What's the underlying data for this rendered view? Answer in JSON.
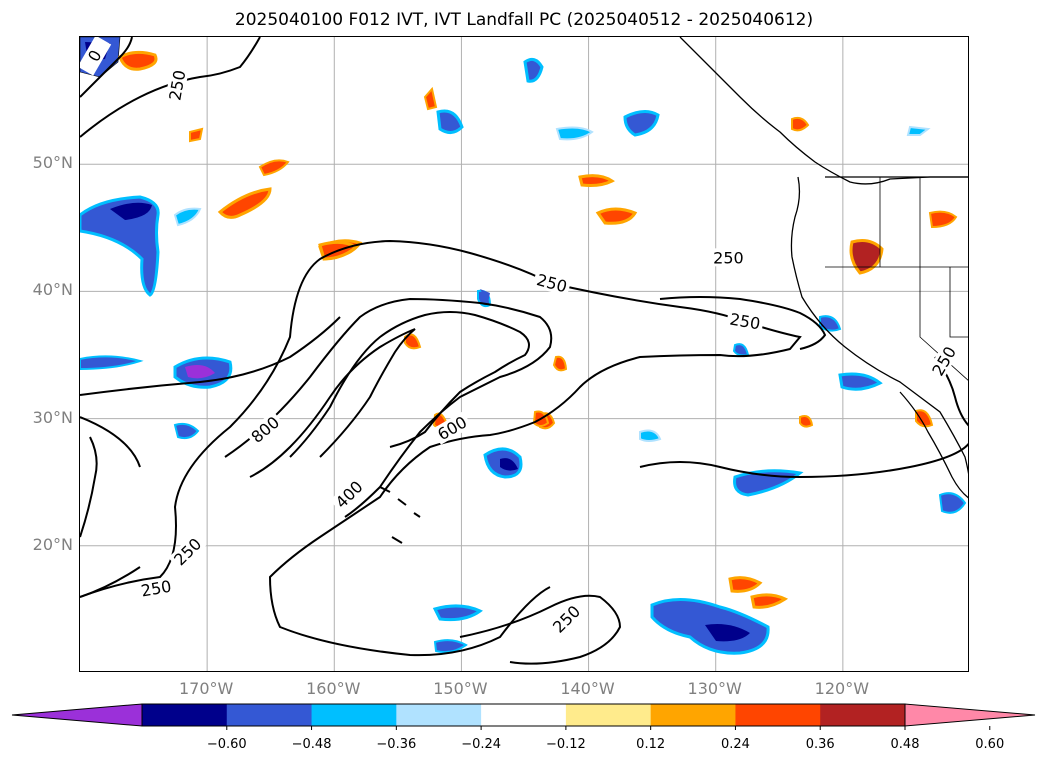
{
  "title": "2025040100 F012 IVT, IVT Landfall PC (2025040512 - 2025040612)",
  "map": {
    "lat_labels": [
      {
        "text": "50°N",
        "lat": 50
      },
      {
        "text": "40°N",
        "lat": 40
      },
      {
        "text": "30°N",
        "lat": 30
      },
      {
        "text": "20°N",
        "lat": 20
      }
    ],
    "lon_labels": [
      {
        "text": "170°W",
        "lon": -170
      },
      {
        "text": "160°W",
        "lon": -160
      },
      {
        "text": "150°W",
        "lon": -150
      },
      {
        "text": "140°W",
        "lon": -140
      },
      {
        "text": "130°W",
        "lon": -130
      },
      {
        "text": "120°W",
        "lon": -120
      }
    ],
    "extent": {
      "lon_min": -180,
      "lon_max": -110,
      "lat_min": 10,
      "lat_max": 60
    },
    "contour_labels": [
      {
        "text": "250",
        "lon": -171.5,
        "lat": 19.5,
        "rot": -45
      },
      {
        "text": "250",
        "lon": -174,
        "lat": 16.6,
        "rot": -10
      },
      {
        "text": "400",
        "lon": -158.8,
        "lat": 24,
        "rot": -45
      },
      {
        "text": "800",
        "lon": -165.4,
        "lat": 29.1,
        "rot": -40
      },
      {
        "text": "600",
        "lon": -150.7,
        "lat": 29.2,
        "rot": -30
      },
      {
        "text": "250",
        "lon": -142.9,
        "lat": 40.6,
        "rot": 15
      },
      {
        "text": "250",
        "lon": -129,
        "lat": 42.6,
        "rot": 0
      },
      {
        "text": "250",
        "lon": -127.7,
        "lat": 37.6,
        "rot": 10
      },
      {
        "text": "250",
        "lon": -141.7,
        "lat": 14.2,
        "rot": -45
      },
      {
        "text": "250",
        "lon": -112,
        "lat": 34.5,
        "rot": -60
      },
      {
        "text": "250",
        "lon": -172.3,
        "lat": 56.2,
        "rot": -80
      },
      {
        "text": "0",
        "lon": -178.8,
        "lat": 58.5,
        "rot": -60
      }
    ],
    "land_color": "#000000",
    "grid_color": "#b0b0b0"
  },
  "colorbar": {
    "colors": [
      "#9b30d9",
      "#00008b",
      "#3458d4",
      "#00bfff",
      "#b0e2ff",
      "#ffffff",
      "#ffeb8c",
      "#ffa500",
      "#ff4500",
      "#b22222",
      "#ff88a8"
    ],
    "ticks": [
      "−0.60",
      "−0.48",
      "−0.36",
      "−0.24",
      "−0.12",
      "0.12",
      "0.24",
      "0.36",
      "0.48",
      "0.60"
    ]
  }
}
